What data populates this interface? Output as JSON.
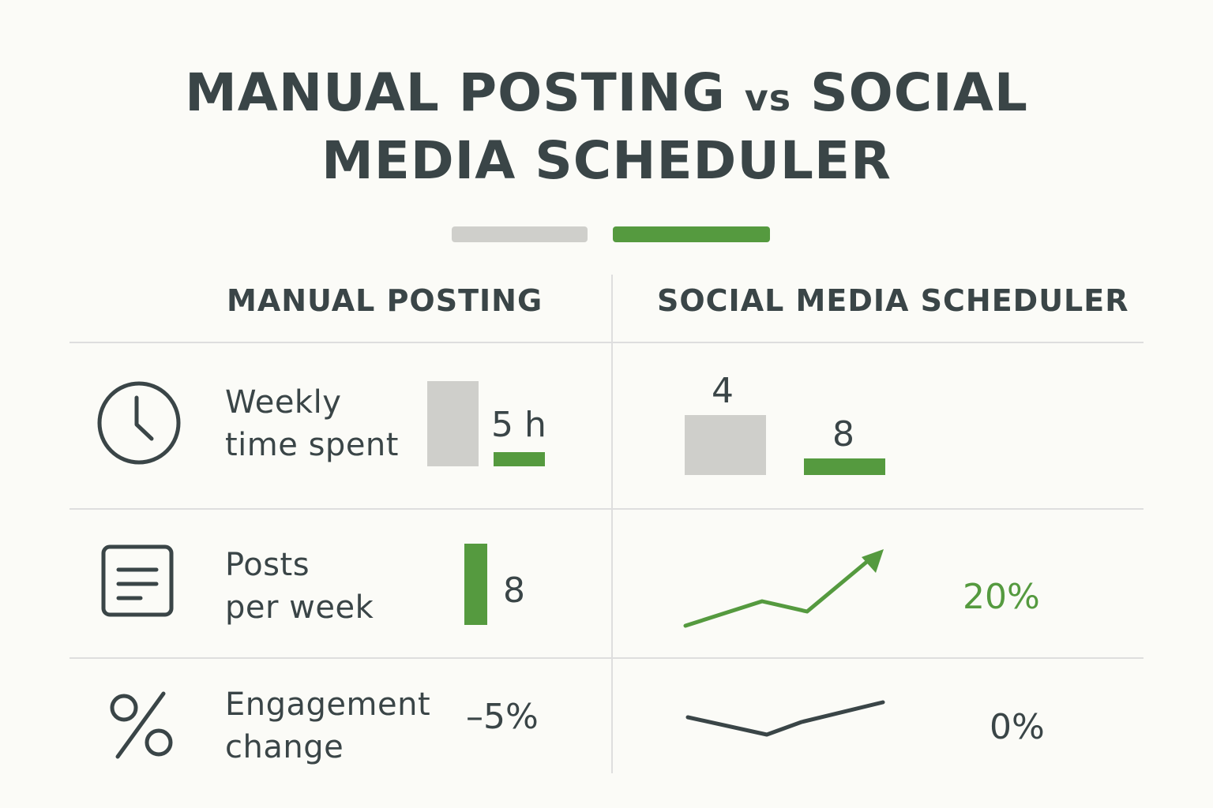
{
  "title_line1_a": "MANUAL POSTING",
  "title_vs": "vs",
  "title_line1_b": "SOCIAL",
  "title_line2": "MEDIA SCHEDULER",
  "colors": {
    "manual": "#cfcfcb",
    "scheduler": "#559a3f",
    "text": "#3a4547",
    "divider": "#dedede"
  },
  "columns": {
    "manual": "MANUAL POSTING",
    "scheduler": "SOCIAL MEDIA SCHEDULER"
  },
  "rows": [
    {
      "icon": "clock-icon",
      "label": "Weekly\ntime spent",
      "manual_value": "5 h",
      "scheduler_value_a": "4",
      "scheduler_value_b": "8"
    },
    {
      "icon": "document-icon",
      "label": "Posts\nper week",
      "manual_value": "8",
      "scheduler_value": "20%"
    },
    {
      "icon": "percent-icon",
      "label": "Engagement\nchange",
      "manual_value": "–5%",
      "scheduler_value": "0%"
    }
  ],
  "chart_data": {
    "type": "table",
    "categories": [
      "Weekly time spent",
      "Posts per week",
      "Engagement change"
    ],
    "series": [
      {
        "name": "MANUAL POSTING",
        "values": [
          "5 h",
          "8",
          "–5%"
        ]
      },
      {
        "name": "SOCIAL MEDIA SCHEDULER",
        "values": [
          "4 / 8",
          "20%",
          "0%"
        ]
      }
    ],
    "legend": "top-center"
  }
}
